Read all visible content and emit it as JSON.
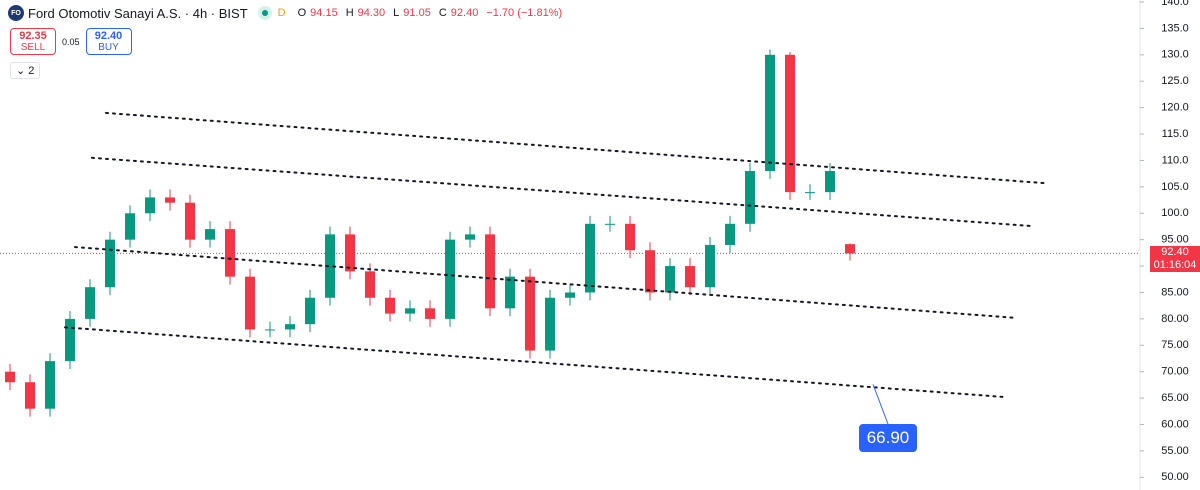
{
  "header": {
    "logo": "FO",
    "title": "Ford Otomotiv Sanayi A.S. · 4h · BIST",
    "status": "D",
    "ohlc": [
      {
        "key": "O",
        "value": "94.15"
      },
      {
        "key": "H",
        "value": "94.30"
      },
      {
        "key": "L",
        "value": "91.05"
      },
      {
        "key": "C",
        "value": "92.40"
      }
    ],
    "change": "−1.70 (−1.81%)"
  },
  "trade": {
    "sell_price": "92.35",
    "sell_label": "SELL",
    "spread": "0.05",
    "buy_price": "92.40",
    "buy_label": "BUY"
  },
  "indicators_toggle": "2",
  "chart_data": {
    "type": "candlestick",
    "open": [
      70,
      68,
      63,
      72,
      80,
      86,
      95,
      100,
      103,
      102,
      95,
      97,
      88,
      78,
      78,
      79,
      84,
      96,
      89,
      84,
      81,
      82,
      80,
      95,
      96,
      82,
      88,
      74,
      84,
      85,
      98,
      98,
      93,
      85,
      90,
      86,
      94,
      98,
      108,
      130,
      104,
      104,
      94.15
    ],
    "high": [
      71.5,
      69.5,
      73.5,
      81.5,
      87.5,
      96.5,
      101.5,
      104.5,
      104.5,
      103.5,
      98.5,
      98.5,
      89.5,
      79.5,
      80.5,
      85.5,
      97.5,
      97.5,
      90.5,
      85.5,
      83.5,
      83.5,
      96.5,
      97.5,
      97.5,
      89.5,
      89.5,
      85.5,
      86.5,
      99.5,
      99.5,
      99.5,
      94.5,
      91.5,
      91.5,
      95.5,
      99.5,
      109.5,
      131,
      130.5,
      105.5,
      109.5,
      94.3
    ],
    "low": [
      66.5,
      61.5,
      61.5,
      70.5,
      78.5,
      84.5,
      93.5,
      98.5,
      100.5,
      93.5,
      93.5,
      86.5,
      76.5,
      76.5,
      76.5,
      77.5,
      82.5,
      87.5,
      82.5,
      79.5,
      79.5,
      78.5,
      78.5,
      93.5,
      80.5,
      80.5,
      72.5,
      72.5,
      82.5,
      83.5,
      96.5,
      91.5,
      83.5,
      83.5,
      84.5,
      84.5,
      92.5,
      96.5,
      106.5,
      102.5,
      102.5,
      102.5,
      91.05
    ],
    "close": [
      68,
      63,
      72,
      80,
      86,
      95,
      100,
      103,
      102,
      95,
      97,
      88,
      78,
      78,
      79,
      84,
      96,
      89,
      84,
      81,
      82,
      80,
      95,
      96,
      82,
      88,
      74,
      84,
      85,
      98,
      98,
      93,
      85,
      90,
      86,
      94,
      98,
      108,
      130,
      104,
      104,
      108,
      92.4
    ],
    "up_color": "#089981",
    "down_color": "#f23645",
    "xlim": [
      -0.5,
      56.5
    ],
    "ylim": [
      47.6,
      140.38
    ],
    "yticks": [
      {
        "value": 50,
        "label": "50.00"
      },
      {
        "value": 55,
        "label": "55.00"
      },
      {
        "value": 60,
        "label": "60.00"
      },
      {
        "value": 65,
        "label": "65.00"
      },
      {
        "value": 70,
        "label": "70.00"
      },
      {
        "value": 75,
        "label": "75.00"
      },
      {
        "value": 80,
        "label": "80.00"
      },
      {
        "value": 85,
        "label": "85.00"
      },
      {
        "value": 90,
        "label": "90.00"
      },
      {
        "value": 95,
        "label": "95.00"
      },
      {
        "value": 100,
        "label": "100.0"
      },
      {
        "value": 105,
        "label": "105.0"
      },
      {
        "value": 110,
        "label": "110.0"
      },
      {
        "value": 115,
        "label": "115.0"
      },
      {
        "value": 120,
        "label": "120.0"
      },
      {
        "value": 125,
        "label": "125.0"
      },
      {
        "value": 130,
        "label": "130.0"
      },
      {
        "value": 135,
        "label": "135.0"
      },
      {
        "value": 140,
        "label": "140.0"
      }
    ],
    "trend_lines": [
      {
        "x": [
          4.8,
          51.75
        ],
        "y": [
          119,
          105.7
        ]
      },
      {
        "x": [
          4.1,
          51
        ],
        "y": [
          110.5,
          97.6
        ]
      },
      {
        "x": [
          3.25,
          50.25
        ],
        "y": [
          93.6,
          80.2
        ]
      },
      {
        "x": [
          2.75,
          49.75
        ],
        "y": [
          78.4,
          65.2
        ]
      }
    ],
    "annotations": [
      {
        "x": 43.15,
        "y": 67.6,
        "value": 66.9,
        "label": "66.90"
      }
    ],
    "last_price": {
      "value": 92.4,
      "label": "92.40",
      "countdown": "01:16:04"
    }
  }
}
